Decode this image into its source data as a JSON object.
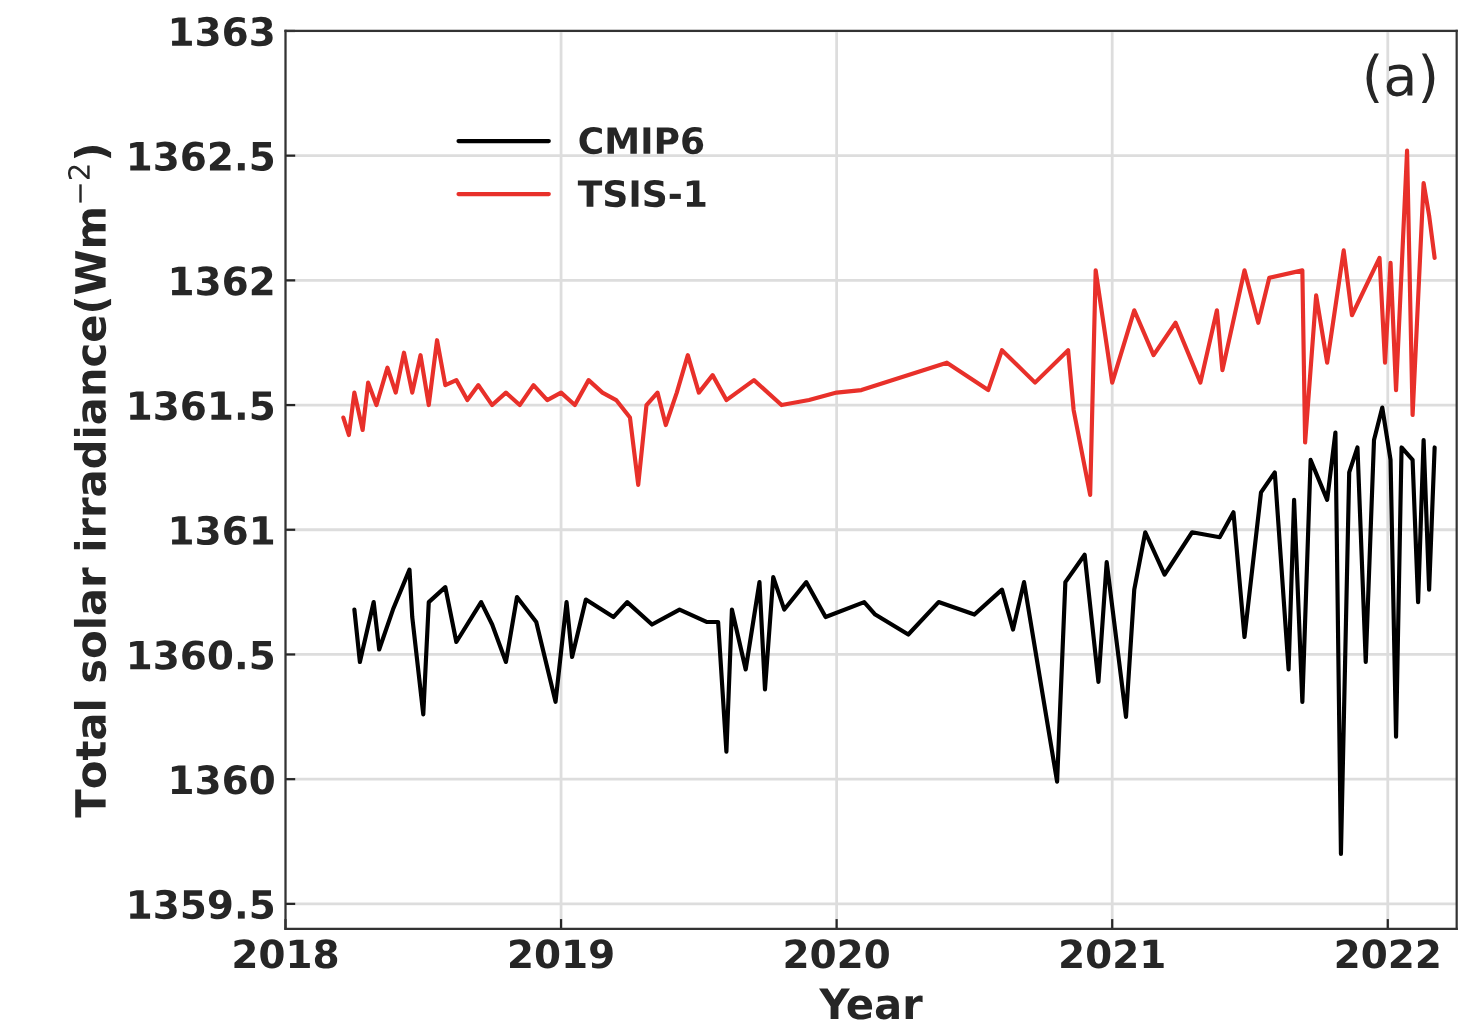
{
  "chart_data": {
    "type": "line",
    "xlabel": "Year",
    "ylabel": "Total solar irradiance(Wm$^{−2}$)",
    "annotations": [
      "(a)"
    ],
    "xlim": [
      2018,
      2022.25
    ],
    "xticks": [
      2018,
      2019,
      2020,
      2021,
      2022
    ],
    "ylim": [
      1359.4,
      1363
    ],
    "yticks": [
      1359.5,
      1360,
      1360.5,
      1361,
      1361.5,
      1362,
      1362.5,
      1363
    ],
    "grid": true,
    "legend": "top left",
    "line_style": "solid",
    "marker": "none",
    "series": [
      {
        "name": "CMIP6",
        "color": "#000000",
        "x": [
          2018.25,
          2018.27,
          2018.32,
          2018.34,
          2018.39,
          2018.45,
          2018.46,
          2018.5,
          2018.52,
          2018.58,
          2018.62,
          2018.71,
          2018.75,
          2018.8,
          2018.84,
          2018.91,
          2018.98,
          2019.02,
          2019.04,
          2019.09,
          2019.19,
          2019.24,
          2019.33,
          2019.43,
          2019.53,
          2019.57,
          2019.6,
          2019.62,
          2019.67,
          2019.72,
          2019.74,
          2019.77,
          2019.81,
          2019.89,
          2019.96,
          2020.1,
          2020.14,
          2020.26,
          2020.37,
          2020.5,
          2020.6,
          2020.64,
          2020.68,
          2020.8,
          2020.83,
          2020.9,
          2020.95,
          2020.98,
          2021.05,
          2021.08,
          2021.12,
          2021.19,
          2021.29,
          2021.39,
          2021.44,
          2021.48,
          2021.54,
          2021.59,
          2021.64,
          2021.66,
          2021.69,
          2021.72,
          2021.78,
          2021.81,
          2021.83,
          2021.86,
          2021.89,
          2021.92,
          2021.95,
          2021.98,
          2022.01,
          2022.03,
          2022.05,
          2022.09,
          2022.11,
          2022.13,
          2022.15,
          2022.17
        ],
        "values": [
          1360.68,
          1360.47,
          1360.71,
          1360.52,
          1360.68,
          1360.84,
          1360.65,
          1360.26,
          1360.71,
          1360.77,
          1360.55,
          1360.71,
          1360.62,
          1360.47,
          1360.73,
          1360.63,
          1360.31,
          1360.71,
          1360.49,
          1360.72,
          1360.65,
          1360.71,
          1360.62,
          1360.68,
          1360.63,
          1360.63,
          1360.11,
          1360.68,
          1360.44,
          1360.79,
          1360.36,
          1360.81,
          1360.68,
          1360.79,
          1360.65,
          1360.71,
          1360.66,
          1360.58,
          1360.71,
          1360.66,
          1360.76,
          1360.6,
          1360.79,
          1359.99,
          1360.79,
          1360.9,
          1360.39,
          1360.87,
          1360.25,
          1360.76,
          1360.99,
          1360.82,
          1360.99,
          1360.97,
          1361.07,
          1360.57,
          1361.15,
          1361.23,
          1360.44,
          1361.12,
          1360.31,
          1361.28,
          1361.12,
          1361.39,
          1359.7,
          1361.23,
          1361.33,
          1360.47,
          1361.36,
          1361.49,
          1361.28,
          1360.17,
          1361.33,
          1361.28,
          1360.71,
          1361.36,
          1360.76,
          1361.33
        ]
      },
      {
        "name": "TSIS-1",
        "color": "#e8302a",
        "x": [
          2018.21,
          2018.23,
          2018.25,
          2018.28,
          2018.3,
          2018.33,
          2018.37,
          2018.4,
          2018.43,
          2018.46,
          2018.49,
          2018.52,
          2018.55,
          2018.58,
          2018.62,
          2018.66,
          2018.7,
          2018.75,
          2018.8,
          2018.85,
          2018.9,
          2018.95,
          2019.0,
          2019.05,
          2019.1,
          2019.15,
          2019.2,
          2019.25,
          2019.28,
          2019.31,
          2019.35,
          2019.38,
          2019.42,
          2019.46,
          2019.5,
          2019.55,
          2019.6,
          2019.7,
          2019.8,
          2019.9,
          2020.0,
          2020.09,
          2020.4,
          2020.55,
          2020.6,
          2020.72,
          2020.84,
          2020.86,
          2020.92,
          2020.94,
          2021.0,
          2021.08,
          2021.15,
          2021.23,
          2021.32,
          2021.38,
          2021.4,
          2021.48,
          2021.53,
          2021.57,
          2021.69,
          2021.7,
          2021.74,
          2021.78,
          2021.84,
          2021.87,
          2021.97,
          2021.99,
          2022.01,
          2022.03,
          2022.07,
          2022.09,
          2022.13,
          2022.15,
          2022.17
        ],
        "values": [
          1361.45,
          1361.38,
          1361.55,
          1361.4,
          1361.59,
          1361.5,
          1361.65,
          1361.55,
          1361.71,
          1361.55,
          1361.7,
          1361.5,
          1361.76,
          1361.58,
          1361.6,
          1361.52,
          1361.58,
          1361.5,
          1361.55,
          1361.5,
          1361.58,
          1361.52,
          1361.55,
          1361.5,
          1361.6,
          1361.55,
          1361.52,
          1361.45,
          1361.18,
          1361.5,
          1361.55,
          1361.42,
          1361.55,
          1361.7,
          1361.55,
          1361.62,
          1361.52,
          1361.6,
          1361.5,
          1361.52,
          1361.55,
          1361.56,
          1361.67,
          1361.56,
          1361.72,
          1361.59,
          1361.72,
          1361.48,
          1361.14,
          1362.04,
          1361.59,
          1361.88,
          1361.7,
          1361.83,
          1361.59,
          1361.88,
          1361.64,
          1362.04,
          1361.83,
          1362.01,
          1362.04,
          1361.35,
          1361.94,
          1361.67,
          1362.12,
          1361.86,
          1362.09,
          1361.67,
          1362.07,
          1361.56,
          1362.52,
          1361.46,
          1362.39,
          1362.26,
          1362.09
        ]
      }
    ]
  }
}
